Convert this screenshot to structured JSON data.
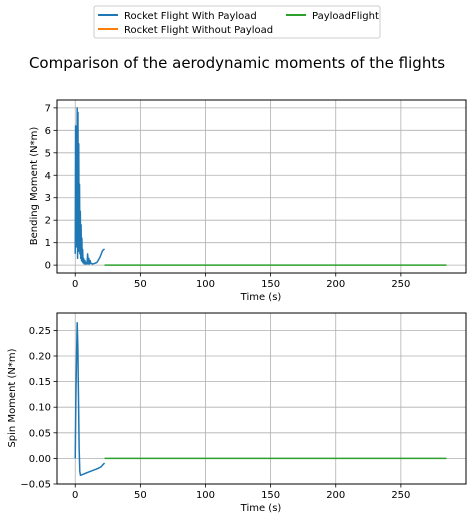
{
  "title": "Comparison of the aerodynamic moments of the flights",
  "legend": {
    "placement": "top-center",
    "entries": [
      {
        "label": "Rocket Flight With Payload",
        "color": "#1f77b4"
      },
      {
        "label": "Rocket Flight Without Payload",
        "color": "#ff7f0e"
      },
      {
        "label": "PayloadFlight",
        "color": "#2ca02c"
      }
    ]
  },
  "chart_data": [
    {
      "type": "line",
      "xlabel": "Time (s)",
      "ylabel": "Bending Moment (N*m)",
      "xlim": [
        -14,
        300
      ],
      "ylim": [
        -0.35,
        7.35
      ],
      "xticks": [
        0,
        50,
        100,
        150,
        200,
        250
      ],
      "yticks": [
        0,
        1,
        2,
        3,
        4,
        5,
        6,
        7
      ],
      "grid": true,
      "series": [
        {
          "name": "Rocket Flight With Payload",
          "color": "#1f77b4",
          "x": [
            0,
            0.3,
            0.6,
            0.9,
            1.2,
            1.5,
            1.8,
            2.1,
            2.4,
            2.7,
            3.0,
            3.3,
            3.6,
            3.9,
            4.2,
            4.5,
            4.8,
            5.1,
            5.4,
            5.7,
            6.0,
            6.5,
            7.0,
            7.5,
            8.0,
            8.5,
            9.0,
            9.5,
            10.0,
            10.5,
            11.0,
            11.5,
            12.0,
            13.0,
            14.0,
            15.0,
            16.0,
            17.0,
            18.0,
            19.0,
            20.0,
            21.0,
            22.5
          ],
          "y": [
            0.5,
            6.2,
            0.8,
            5.5,
            1.2,
            7.0,
            0.3,
            6.8,
            0.6,
            5.4,
            1.0,
            3.6,
            0.5,
            2.4,
            0.3,
            1.8,
            0.2,
            1.2,
            0.15,
            0.7,
            0.1,
            0.3,
            0.05,
            0.2,
            0.05,
            0.1,
            0.05,
            0.5,
            0.05,
            0.3,
            0.05,
            0.2,
            0.08,
            0.05,
            0.06,
            0.08,
            0.1,
            0.15,
            0.25,
            0.35,
            0.5,
            0.65,
            0.72
          ]
        },
        {
          "name": "PayloadFlight",
          "color": "#2ca02c",
          "x": [
            22.5,
            285
          ],
          "y": [
            0,
            0
          ]
        }
      ]
    },
    {
      "type": "line",
      "xlabel": "Time (s)",
      "ylabel": "Spin Moment (N*m)",
      "xlim": [
        -14,
        300
      ],
      "ylim": [
        -0.05,
        0.284
      ],
      "xticks": [
        0,
        50,
        100,
        150,
        200,
        250
      ],
      "yticks": [
        -0.05,
        0.0,
        0.05,
        0.1,
        0.15,
        0.2,
        0.25
      ],
      "ytick_labels": [
        "−0.05",
        "0.00",
        "0.05",
        "0.10",
        "0.15",
        "0.20",
        "0.25"
      ],
      "grid": true,
      "series": [
        {
          "name": "Rocket Flight With Payload",
          "color": "#1f77b4",
          "x": [
            0,
            0.5,
            1.0,
            1.5,
            2.0,
            2.5,
            3.0,
            3.5,
            4.0,
            5.0,
            6.0,
            8.0,
            10.0,
            12.0,
            14.0,
            16.0,
            18.0,
            20.0,
            21.0,
            22.5
          ],
          "y": [
            0,
            0.12,
            0.2,
            0.265,
            0.22,
            0.12,
            0.02,
            -0.025,
            -0.033,
            -0.032,
            -0.031,
            -0.029,
            -0.027,
            -0.025,
            -0.023,
            -0.021,
            -0.019,
            -0.016,
            -0.013,
            -0.009
          ]
        },
        {
          "name": "PayloadFlight",
          "color": "#2ca02c",
          "x": [
            22.5,
            285
          ],
          "y": [
            0,
            0
          ]
        }
      ]
    }
  ]
}
